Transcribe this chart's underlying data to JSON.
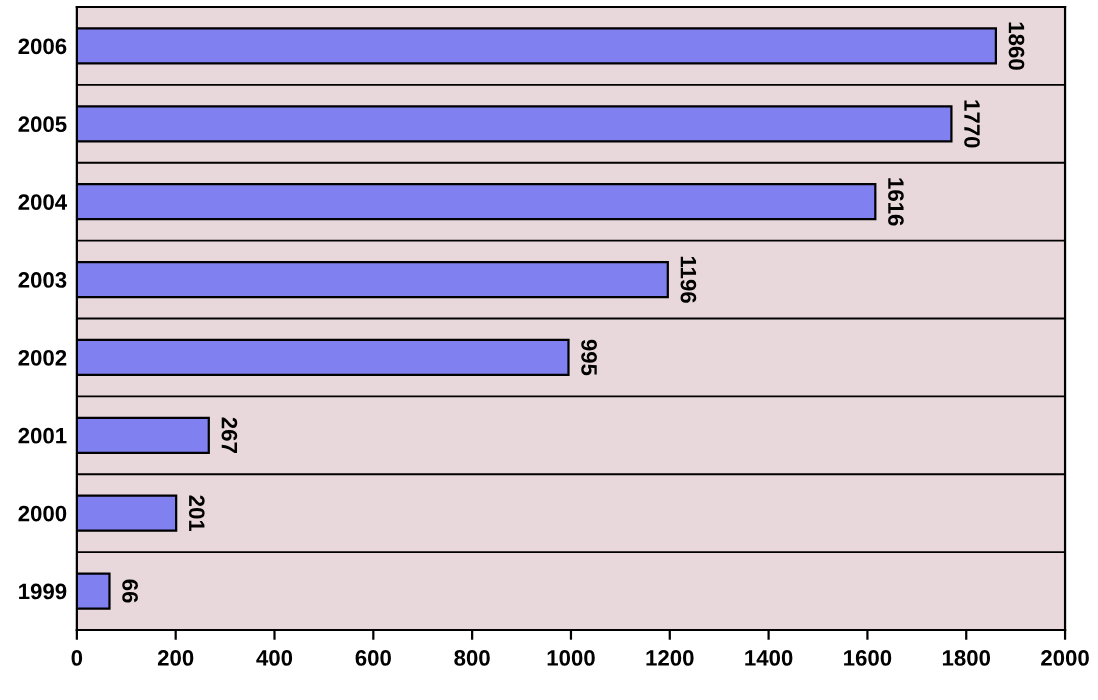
{
  "chart_data": {
    "type": "bar",
    "orientation": "horizontal",
    "categories": [
      "2006",
      "2005",
      "2004",
      "2003",
      "2002",
      "2001",
      "2000",
      "1999"
    ],
    "values": [
      1860,
      1770,
      1616,
      1196,
      995,
      267,
      201,
      66
    ],
    "color": "#8080f0",
    "data_labels": true,
    "grid": "y",
    "xlim": [
      0,
      2000
    ],
    "xticks": [
      0,
      200,
      400,
      600,
      800,
      1000,
      1200,
      1400,
      1600,
      1800,
      2000
    ]
  }
}
